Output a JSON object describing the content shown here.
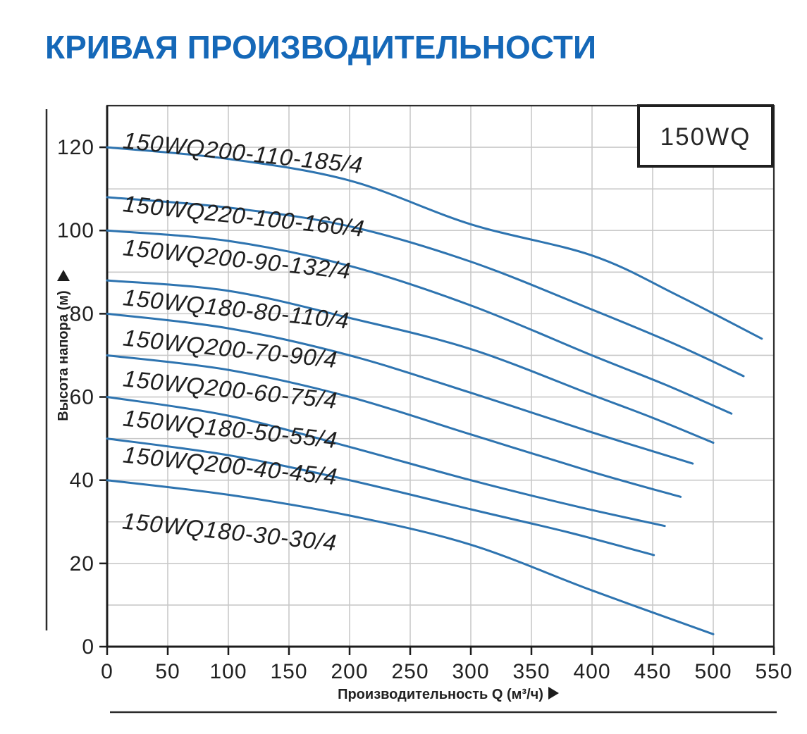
{
  "title": "КРИВАЯ ПРОИЗВОДИТЕЛЬНОСТИ",
  "badge": "150WQ",
  "colors": {
    "title": "#1568b8",
    "curve": "#2e74b0",
    "grid": "#c9c9c9",
    "frame": "#2d2d2d",
    "axis": "#1c1c1c",
    "text": "#212121"
  },
  "chart_data": {
    "type": "line",
    "title": "КРИВАЯ ПРОИЗВОДИТЕЛЬНОСТИ",
    "xlabel": "Производительность Q (м³/ч)",
    "ylabel": "Высота напора (м)",
    "xlim": [
      0,
      550
    ],
    "ylim": [
      0,
      130
    ],
    "x_ticks": [
      0,
      50,
      100,
      150,
      200,
      250,
      300,
      350,
      400,
      450,
      500,
      550
    ],
    "y_ticks": [
      0,
      20,
      40,
      60,
      80,
      100,
      120
    ],
    "grid": {
      "x_step": 50,
      "y_step": 10,
      "visible": true
    },
    "legend_position": "inline-labels",
    "series_family": "150WQ",
    "series": [
      {
        "name": "150WQ200-110-185/4",
        "points": [
          [
            0,
            120
          ],
          [
            100,
            117.2
          ],
          [
            200,
            112
          ],
          [
            300,
            101.5
          ],
          [
            400,
            94
          ],
          [
            470,
            84.5
          ],
          [
            540,
            74
          ]
        ],
        "label": {
          "q": 12.5,
          "h": 119.8,
          "angle": 6
        }
      },
      {
        "name": "150WQ220-100-160/4",
        "points": [
          [
            0,
            108
          ],
          [
            100,
            105.5
          ],
          [
            200,
            101
          ],
          [
            300,
            92.5
          ],
          [
            400,
            81
          ],
          [
            470,
            72.5
          ],
          [
            525,
            65
          ]
        ],
        "label": {
          "q": 12.5,
          "h": 104.6,
          "angle": 6
        }
      },
      {
        "name": "150WQ200-90-132/4",
        "points": [
          [
            0,
            100
          ],
          [
            100,
            97.5
          ],
          [
            200,
            91.5
          ],
          [
            300,
            82
          ],
          [
            400,
            70
          ],
          [
            460,
            63
          ],
          [
            515,
            56
          ]
        ],
        "label": {
          "q": 12.5,
          "h": 94.1,
          "angle": 6
        }
      },
      {
        "name": "150WQ180-80-110/4",
        "points": [
          [
            0,
            88
          ],
          [
            100,
            85.5
          ],
          [
            200,
            79
          ],
          [
            300,
            71.5
          ],
          [
            400,
            60.5
          ],
          [
            450,
            55
          ],
          [
            500,
            49
          ]
        ],
        "label": {
          "q": 12.5,
          "h": 82.1,
          "angle": 6
        }
      },
      {
        "name": "150WQ200-70-90/4",
        "points": [
          [
            0,
            80
          ],
          [
            100,
            76.5
          ],
          [
            200,
            70
          ],
          [
            300,
            61
          ],
          [
            400,
            51.5
          ],
          [
            483,
            44
          ]
        ],
        "label": {
          "q": 12.5,
          "h": 72.4,
          "angle": 6
        }
      },
      {
        "name": "150WQ200-60-75/4",
        "points": [
          [
            0,
            70
          ],
          [
            100,
            66.5
          ],
          [
            200,
            60
          ],
          [
            300,
            51
          ],
          [
            400,
            42
          ],
          [
            473,
            36
          ]
        ],
        "label": {
          "q": 12.5,
          "h": 62.6,
          "angle": 6
        }
      },
      {
        "name": "150WQ180-50-55/4",
        "points": [
          [
            0,
            60
          ],
          [
            100,
            55.5
          ],
          [
            200,
            48
          ],
          [
            300,
            40
          ],
          [
            390,
            33.5
          ],
          [
            460,
            29
          ]
        ],
        "label": {
          "q": 12.5,
          "h": 53.1,
          "angle": 6
        }
      },
      {
        "name": "150WQ200-40-45/4",
        "points": [
          [
            0,
            50
          ],
          [
            100,
            46
          ],
          [
            200,
            40
          ],
          [
            300,
            33
          ],
          [
            380,
            27.5
          ],
          [
            451,
            22
          ]
        ],
        "label": {
          "q": 12.5,
          "h": 44.3,
          "angle": 6
        }
      },
      {
        "name": "150WQ180-30-30/4",
        "points": [
          [
            0,
            40
          ],
          [
            100,
            36.5
          ],
          [
            200,
            31.5
          ],
          [
            300,
            24.5
          ],
          [
            400,
            13.5
          ],
          [
            500,
            3
          ]
        ],
        "label": {
          "q": 12,
          "h": 28.4,
          "angle": 6
        }
      }
    ]
  }
}
